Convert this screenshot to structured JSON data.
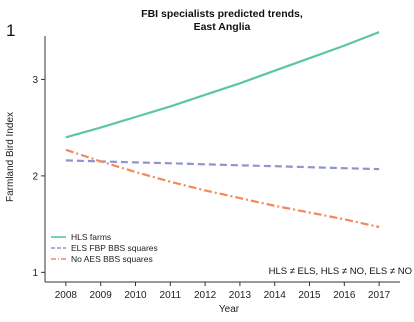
{
  "panel_label": "1",
  "chart_data": {
    "type": "line",
    "title": "FBI specialists predicted trends,",
    "subtitle": "East Anglia",
    "xlabel": "Year",
    "ylabel": "Farmland Bird Index",
    "x": [
      2008,
      2009,
      2010,
      2011,
      2012,
      2013,
      2014,
      2015,
      2016,
      2017
    ],
    "xlim": [
      2007.4,
      2017.6
    ],
    "ylim": [
      0.9,
      3.45
    ],
    "yticks": [
      1,
      2,
      3
    ],
    "grid": false,
    "legend_position": "bottom-left",
    "series": [
      {
        "name": "HLS farms",
        "color": "#5cc6a4",
        "dash": "solid",
        "values": [
          2.4,
          2.5,
          2.61,
          2.72,
          2.84,
          2.96,
          3.09,
          3.22,
          3.35,
          3.49
        ]
      },
      {
        "name": "ELS FBP BBS squares",
        "color": "#8f95cc",
        "dash": "dashed",
        "values": [
          2.16,
          2.15,
          2.14,
          2.13,
          2.12,
          2.11,
          2.1,
          2.09,
          2.08,
          2.07
        ]
      },
      {
        "name": "No AES BBS squares",
        "color": "#f08a5a",
        "dash": "dashdot",
        "values": [
          2.27,
          2.15,
          2.04,
          1.94,
          1.85,
          1.77,
          1.69,
          1.62,
          1.55,
          1.47
        ]
      }
    ],
    "annotation": "HLS ≠ ELS, HLS ≠ NO, ELS ≠ NO"
  }
}
